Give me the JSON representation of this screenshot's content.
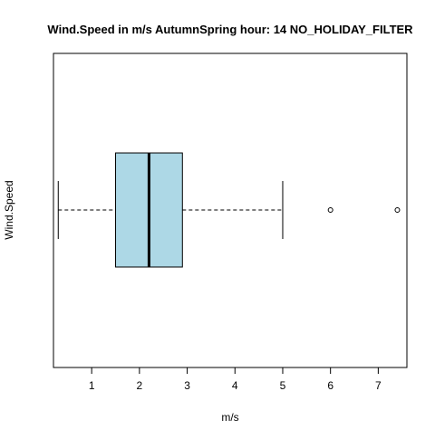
{
  "chart_data": {
    "type": "boxplot",
    "orientation": "horizontal",
    "title": "Wind.Speed in m/s AutumnSpring hour: 14 NO_HOLIDAY_FILTER",
    "xlabel": "m/s",
    "ylabel": "Wind.Speed",
    "xlim": [
      0.2,
      7.6
    ],
    "x_ticks": [
      1,
      2,
      3,
      4,
      5,
      6,
      7
    ],
    "x_tick_labels": [
      "1",
      "2",
      "3",
      "4",
      "5",
      "6",
      "7"
    ],
    "box": {
      "whisker_low": 0.3,
      "q1": 1.5,
      "median": 2.2,
      "q3": 2.9,
      "whisker_high": 5.0
    },
    "outliers": [
      6.0,
      7.4
    ],
    "box_fill_color": "#add8e6",
    "grid": false,
    "legend": "none"
  }
}
